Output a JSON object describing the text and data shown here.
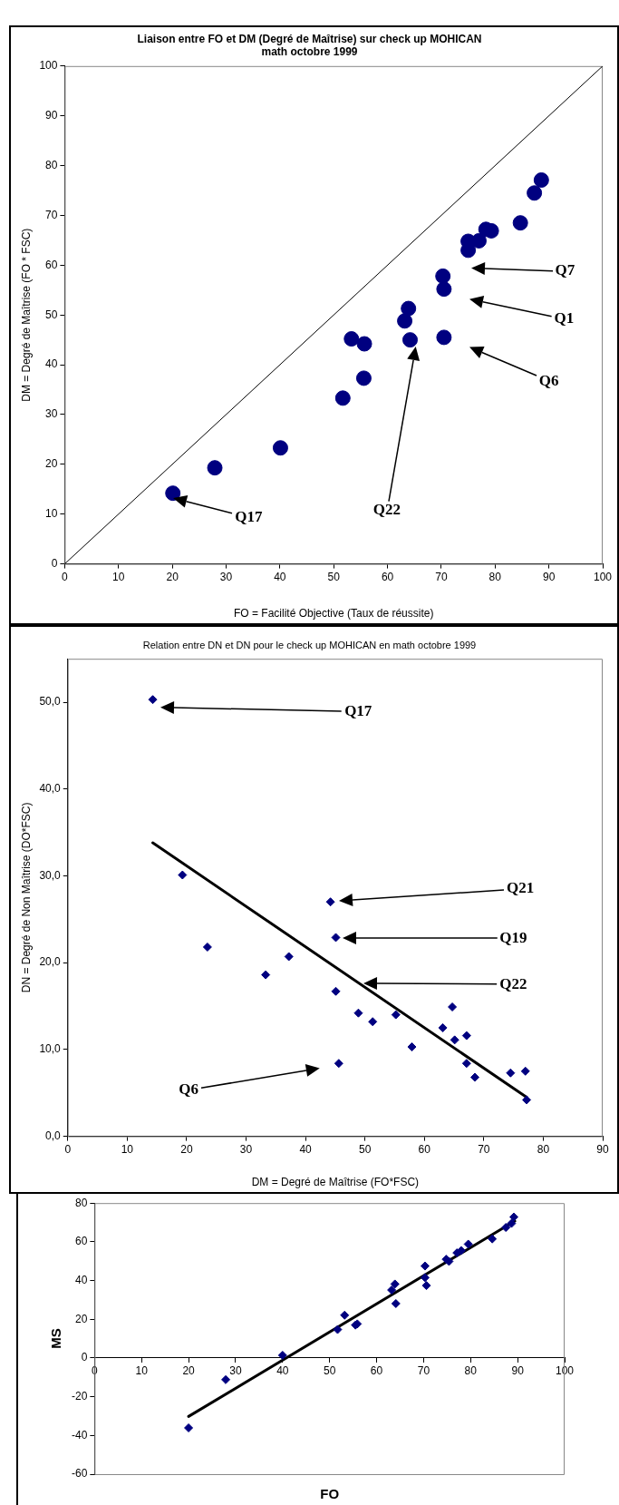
{
  "chart_data": [
    {
      "type": "scatter",
      "title": "Liaison entre FO et DM (Degré de Maîtrise) sur check up MOHICAN\nmath octobre 1999",
      "xlabel": "FO = Facilité Objective (Taux de réussite)",
      "ylabel": "DM = Degré de Maîtrise (FO * FSC)",
      "xlim": [
        0,
        100
      ],
      "ylim": [
        0,
        100
      ],
      "xticks": [
        0,
        10,
        20,
        30,
        40,
        50,
        60,
        70,
        80,
        90,
        100
      ],
      "yticks": [
        0,
        10,
        20,
        30,
        40,
        50,
        60,
        70,
        80,
        90,
        100
      ],
      "grid": false,
      "legend": false,
      "marker": "circle",
      "series": [
        {
          "type": "scatter",
          "color": "#000080",
          "x": [
            88.6,
            87.3,
            84.7,
            79.3,
            78.3,
            77.0,
            75.0,
            75.0,
            70.3,
            70.5,
            63.9,
            63.2,
            64.2,
            70.5,
            53.3,
            55.7,
            55.6,
            51.7,
            40.1,
            27.9,
            20.1
          ],
          "values": [
            77.1,
            74.5,
            68.5,
            66.9,
            67.2,
            64.9,
            64.8,
            63.0,
            57.8,
            55.2,
            51.3,
            48.8,
            45.0,
            45.5,
            45.2,
            44.2,
            37.3,
            33.3,
            23.3,
            19.3,
            14.2
          ]
        },
        {
          "type": "line",
          "color": "#000000",
          "marker": "none",
          "x": [
            0,
            100
          ],
          "values": [
            0,
            100
          ]
        }
      ],
      "annotations": [
        "Q7",
        "Q1",
        "Q6",
        "Q22",
        "Q17"
      ]
    },
    {
      "type": "scatter",
      "title": "Relation entre DN et DN pour le check up MOHICAN en math octobre 1999",
      "xlabel": "DM = Degré de Maîtrise (FO*FSC)",
      "ylabel": "DN = Degré de Non Maîtrise (DO*FSC)",
      "xlim": [
        0,
        90
      ],
      "ylim": [
        0,
        55
      ],
      "xticks": [
        0,
        10,
        20,
        30,
        40,
        50,
        60,
        70,
        80,
        90
      ],
      "yticks": [
        {
          "value": 0,
          "label": "0,0"
        },
        {
          "value": 10,
          "label": "10,0"
        },
        {
          "value": 20,
          "label": "20,0"
        },
        {
          "value": 30,
          "label": "30,0"
        },
        {
          "value": 40,
          "label": "40,0"
        },
        {
          "value": 50,
          "label": "50,0"
        }
      ],
      "grid": false,
      "legend": false,
      "marker": "diamond",
      "series": [
        {
          "type": "scatter",
          "color": "#000080",
          "x": [
            14.3,
            19.3,
            44.2,
            45.1,
            23.5,
            37.2,
            33.3,
            45.1,
            48.9,
            51.3,
            55.2,
            57.9,
            63.1,
            64.7,
            65.1,
            67.1,
            67.1,
            68.5,
            45.6,
            74.5,
            77.0,
            77.2
          ],
          "values": [
            50.3,
            30.1,
            27.0,
            22.9,
            21.8,
            20.7,
            18.6,
            16.7,
            14.2,
            13.2,
            14.0,
            10.3,
            12.5,
            14.9,
            11.1,
            11.6,
            8.4,
            6.8,
            8.4,
            7.3,
            7.5,
            4.2
          ]
        },
        {
          "type": "line",
          "color": "#000000",
          "marker": "none",
          "x": [
            14.3,
            77.2
          ],
          "values": [
            33.8,
            4.5
          ]
        }
      ],
      "annotations": [
        "Q17",
        "Q21",
        "Q19",
        "Q22",
        "Q6"
      ]
    },
    {
      "type": "scatter",
      "xlabel": "FO",
      "ylabel": "MS",
      "xlim": [
        0,
        100
      ],
      "ylim": [
        -60,
        80
      ],
      "xticks": [
        0,
        10,
        20,
        30,
        40,
        50,
        60,
        70,
        80,
        90,
        100
      ],
      "yticks": [
        -60,
        -40,
        -20,
        0,
        20,
        40,
        60,
        80
      ],
      "grid": false,
      "legend": false,
      "marker": "diamond",
      "series": [
        {
          "type": "scatter",
          "color": "#000080",
          "x": [
            20.0,
            27.9,
            40.0,
            51.7,
            53.2,
            55.5,
            55.9,
            63.2,
            63.9,
            64.1,
            70.3,
            70.3,
            70.6,
            74.8,
            75.4,
            77.1,
            78.0,
            79.5,
            84.6,
            87.5,
            88.7,
            89.2
          ],
          "values": [
            -36.1,
            -11.2,
            1.4,
            14.7,
            22.1,
            17.0,
            17.6,
            35.1,
            38.2,
            28.1,
            47.5,
            41.5,
            37.4,
            51.0,
            49.9,
            54.3,
            55.5,
            58.8,
            61.5,
            67.4,
            69.5,
            72.8
          ]
        },
        {
          "type": "line",
          "color": "#000000",
          "marker": "none",
          "x": [
            20.0,
            89.4
          ],
          "values": [
            -30.2,
            70.7
          ]
        }
      ]
    }
  ]
}
